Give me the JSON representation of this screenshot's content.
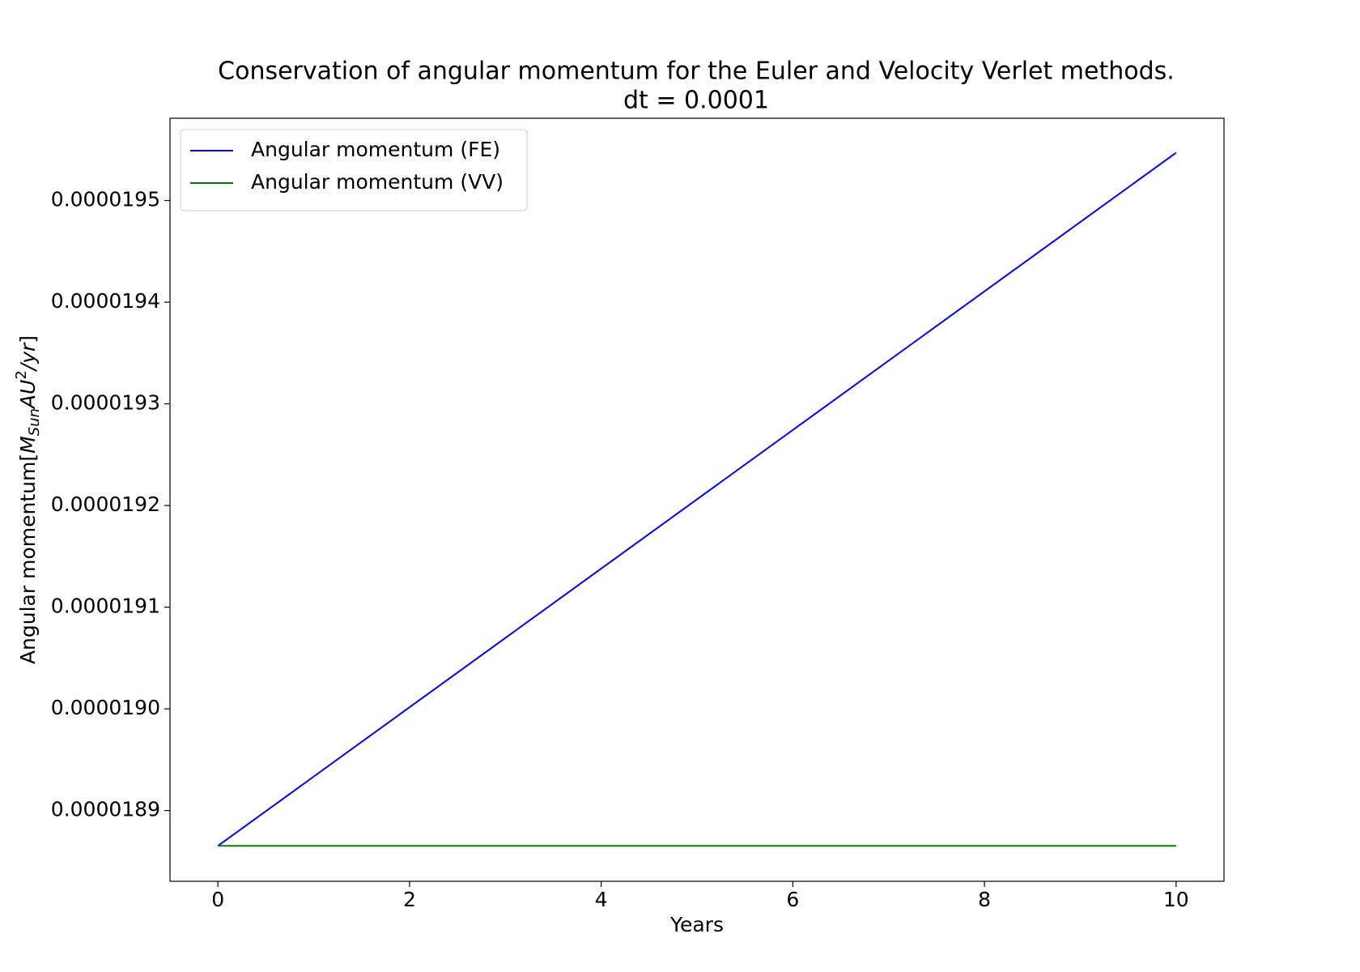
{
  "chart_data": {
    "type": "line",
    "title": "Conservation of angular momentum for the Euler and Velocity Verlet methods.",
    "subtitle": "dt = 0.0001",
    "xlabel": "Years",
    "ylabel": [
      "Angular momentum[",
      "M",
      "Sun",
      "AU",
      "2",
      "/yr",
      "]"
    ],
    "x": [
      0,
      10
    ],
    "series": [
      {
        "name": "Angular momentum (FE)",
        "color": "#0000ff",
        "values": [
          1.886522e-05,
          1.9547e-05
        ]
      },
      {
        "name": "Angular momentum (VV)",
        "color": "#008000",
        "values": [
          1.886522e-05,
          1.886522e-05
        ]
      }
    ],
    "xlim": [
      -0.5,
      10.5
    ],
    "xticks": [
      0,
      2,
      4,
      6,
      8,
      10
    ],
    "ylim": [
      1.88304e-05,
      1.95809e-05
    ],
    "yticks": [
      {
        "value": 1.89e-05,
        "label": "0.0000189"
      },
      {
        "value": 1.9e-05,
        "label": "0.0000190"
      },
      {
        "value": 1.91e-05,
        "label": "0.0000191"
      },
      {
        "value": 1.92e-05,
        "label": "0.0000192"
      },
      {
        "value": 1.93e-05,
        "label": "0.0000193"
      },
      {
        "value": 1.94e-05,
        "label": "0.0000194"
      },
      {
        "value": 1.95e-05,
        "label": "0.0000195"
      }
    ],
    "grid": false,
    "legend": "upper left"
  }
}
